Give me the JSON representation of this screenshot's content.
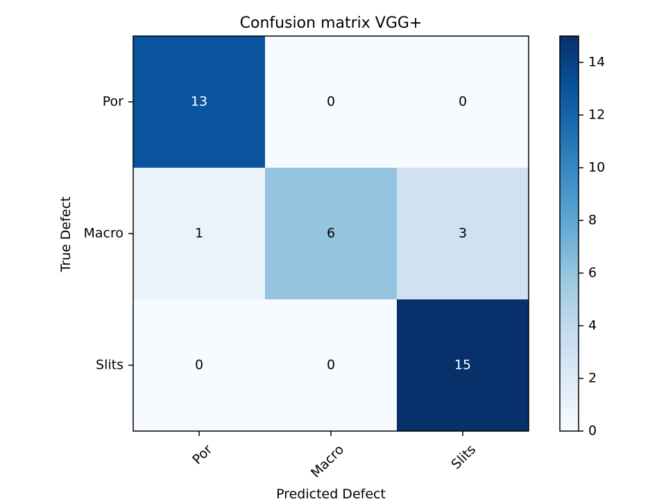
{
  "chart_data": {
    "type": "heatmap",
    "title": "Confusion matrix VGG+",
    "xlabel": "Predicted Defect",
    "ylabel": "True Defect",
    "x_categories": [
      "Por",
      "Macro",
      "Slits"
    ],
    "y_categories": [
      "Por",
      "Macro",
      "Slits"
    ],
    "matrix": [
      [
        13,
        0,
        0
      ],
      [
        1,
        6,
        3
      ],
      [
        0,
        0,
        15
      ]
    ],
    "colorbar": {
      "range": [
        0,
        15
      ],
      "ticks": [
        0,
        2,
        4,
        6,
        8,
        10,
        12,
        14
      ],
      "colormap": "Blues"
    },
    "colors": {
      "low": "#f7fbff",
      "high": "#08306b",
      "text_dark": "#000000",
      "text_light": "#ffffff"
    }
  }
}
